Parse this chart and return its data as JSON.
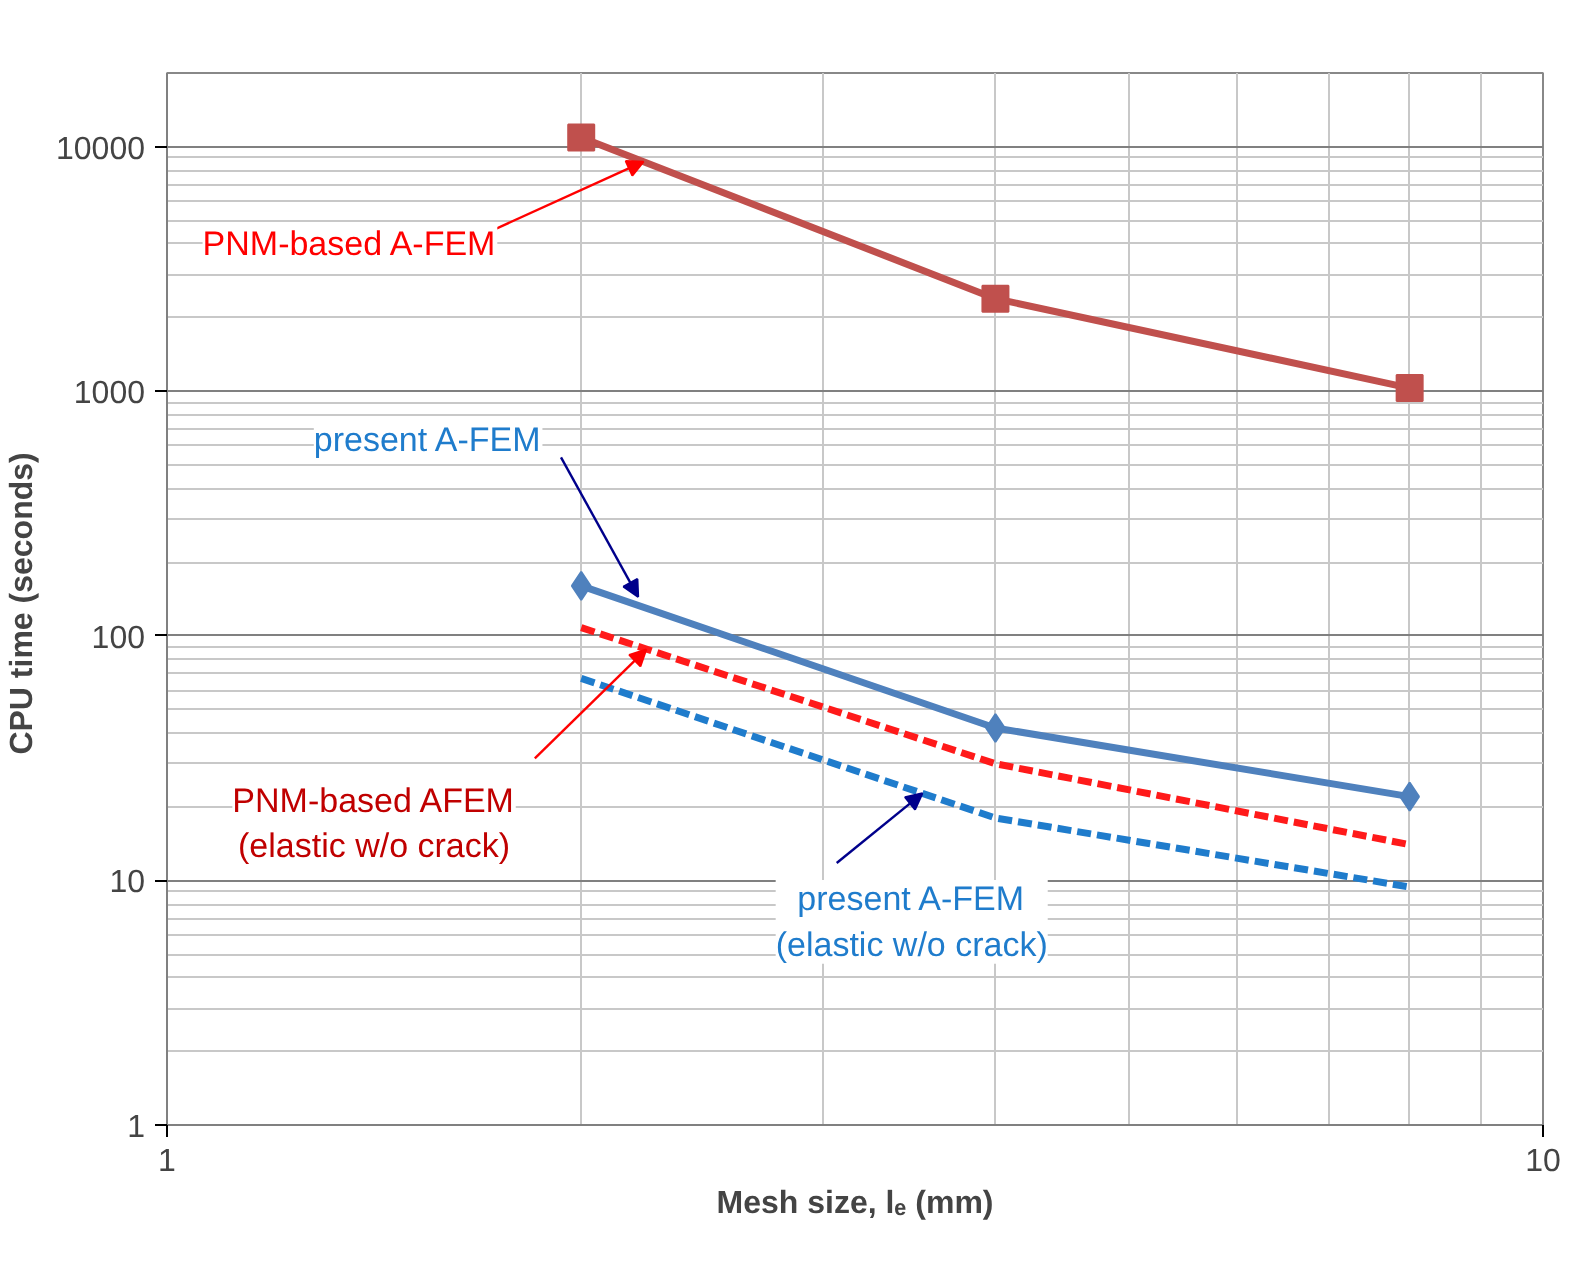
{
  "chart_data": {
    "type": "line",
    "xlabel": "Mesh size, lₑ (mm)",
    "ylabel": "CPU time  (seconds)",
    "x": [
      2,
      4,
      8
    ],
    "series": [
      {
        "color": "#c0504d",
        "values": [
          10900,
          2390,
          1030
        ],
        "marker": "square",
        "line_style": "solid"
      },
      {
        "color": "#4f81bd",
        "values": [
          160,
          42,
          22
        ],
        "marker": "diamond",
        "line_style": "solid"
      },
      {
        "color": "#ff1a1a",
        "values": [
          108,
          30,
          14
        ],
        "marker": "none",
        "line_style": "dashed"
      },
      {
        "color": "#1f7ccc",
        "values": [
          67,
          18,
          9.4
        ],
        "marker": "none",
        "line_style": "dashed"
      }
    ],
    "annotations": [
      {
        "text": "PNM-based A-FEM",
        "x": 2.22,
        "y": 8680
      },
      {
        "text": "present A-FEM",
        "x": 2.2,
        "y": 133
      },
      {
        "text": "PNM-based AFEM\n(elastic w/o crack)",
        "x": 2.23,
        "y": 88
      },
      {
        "text": "present A-FEM\n(elastic w/o crack)",
        "x": 3.54,
        "y": 22.7
      }
    ],
    "log": "xy",
    "xlim": [
      1,
      10
    ],
    "ylim": [
      1,
      20000
    ],
    "xticks": [
      1,
      10
    ],
    "yticks": [
      1,
      10,
      100,
      1000,
      10000
    ],
    "grid": true
  }
}
